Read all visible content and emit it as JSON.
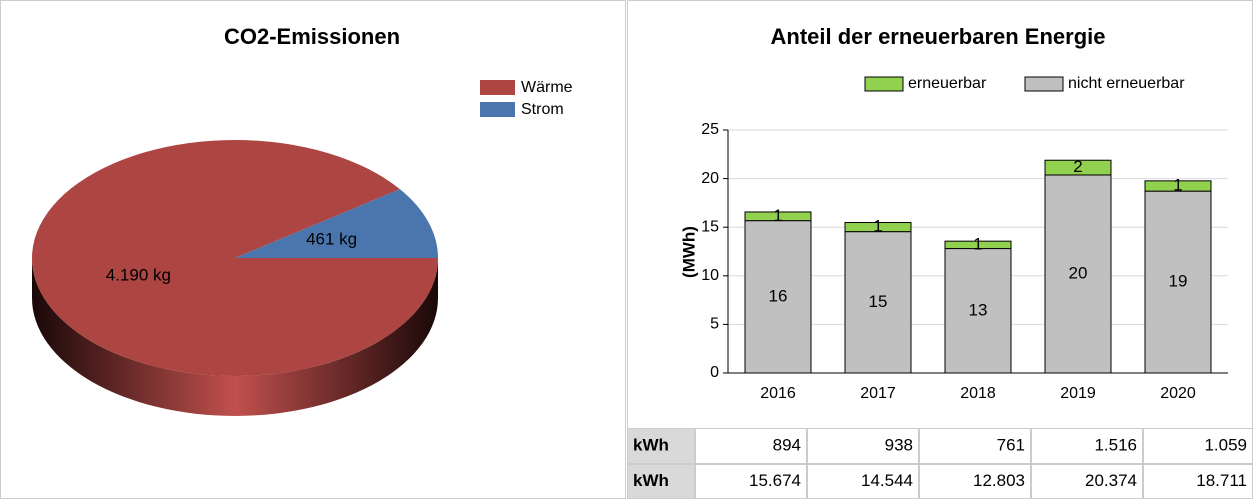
{
  "chart_data": [
    {
      "type": "pie",
      "title": "CO2-Emissionen",
      "categories": [
        "Wärme",
        "Strom"
      ],
      "values": [
        4190,
        461
      ],
      "value_labels": [
        "4.190 kg",
        "461 kg"
      ],
      "colors": [
        "#ad4542",
        "#4a76ad"
      ],
      "legend": "top-right"
    },
    {
      "type": "stacked-bar",
      "title": "Anteil der erneuerbaren Energie",
      "ylabel": "(MWh)",
      "categories": [
        "2016",
        "2017",
        "2018",
        "2019",
        "2020"
      ],
      "series": [
        {
          "name": "erneuerbar",
          "color": "#92d050",
          "values": [
            0.894,
            0.938,
            0.761,
            1.516,
            1.059
          ],
          "value_labels": [
            "1",
            "1",
            "1",
            "2",
            "1"
          ]
        },
        {
          "name": "nicht erneuerbar",
          "color": "#c0c0c0",
          "values": [
            15.674,
            14.544,
            12.803,
            20.374,
            18.711
          ],
          "value_labels": [
            "16",
            "15",
            "13",
            "20",
            "19"
          ]
        }
      ],
      "ylim": [
        0,
        25
      ],
      "yticks": [
        0,
        5,
        10,
        15,
        20,
        25
      ],
      "grid": true,
      "legend": "top"
    }
  ],
  "table": {
    "rows": [
      [
        "kWh",
        "894",
        "938",
        "761",
        "1.516",
        "1.059"
      ],
      [
        "kWh",
        "15.674",
        "14.544",
        "12.803",
        "20.374",
        "18.711"
      ]
    ]
  }
}
